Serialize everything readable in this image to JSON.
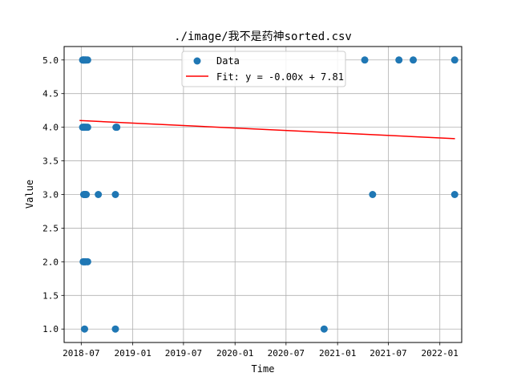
{
  "chart_data": {
    "type": "scatter",
    "title": "./image/我不是药神sorted.csv",
    "xlabel": "Time",
    "ylabel": "Value",
    "x_axis_type": "date",
    "xlim": [
      "2018-05-01",
      "2022-03-20"
    ],
    "ylim": [
      0.8,
      5.2
    ],
    "grid": true,
    "legend_position": "upper-center",
    "x_ticks": [
      "2018-07",
      "2019-01",
      "2019-07",
      "2020-01",
      "2020-07",
      "2021-01",
      "2021-07",
      "2022-01"
    ],
    "y_ticks": [
      "1.0",
      "1.5",
      "2.0",
      "2.5",
      "3.0",
      "3.5",
      "4.0",
      "4.5",
      "5.0"
    ],
    "series": [
      {
        "name": "Data",
        "kind": "scatter",
        "color": "#1f77b4",
        "points": [
          {
            "x": "2018-07-06",
            "y": 5
          },
          {
            "x": "2018-07-08",
            "y": 5
          },
          {
            "x": "2018-07-10",
            "y": 5
          },
          {
            "x": "2018-07-13",
            "y": 5
          },
          {
            "x": "2018-07-16",
            "y": 5
          },
          {
            "x": "2018-07-19",
            "y": 5
          },
          {
            "x": "2018-07-24",
            "y": 5
          },
          {
            "x": "2018-07-06",
            "y": 4
          },
          {
            "x": "2018-07-09",
            "y": 4
          },
          {
            "x": "2018-07-12",
            "y": 4
          },
          {
            "x": "2018-07-15",
            "y": 4
          },
          {
            "x": "2018-07-19",
            "y": 4
          },
          {
            "x": "2018-07-24",
            "y": 4
          },
          {
            "x": "2018-11-02",
            "y": 4
          },
          {
            "x": "2018-11-05",
            "y": 4
          },
          {
            "x": "2018-07-10",
            "y": 3
          },
          {
            "x": "2018-07-13",
            "y": 3
          },
          {
            "x": "2018-07-16",
            "y": 3
          },
          {
            "x": "2018-07-19",
            "y": 3
          },
          {
            "x": "2018-08-31",
            "y": 3
          },
          {
            "x": "2018-10-31",
            "y": 3
          },
          {
            "x": "2018-07-08",
            "y": 2
          },
          {
            "x": "2018-07-11",
            "y": 2
          },
          {
            "x": "2018-07-14",
            "y": 2
          },
          {
            "x": "2018-07-17",
            "y": 2
          },
          {
            "x": "2018-07-24",
            "y": 2
          },
          {
            "x": "2018-07-13",
            "y": 1
          },
          {
            "x": "2018-10-31",
            "y": 1
          },
          {
            "x": "2020-11-14",
            "y": 1
          },
          {
            "x": "2021-04-08",
            "y": 5
          },
          {
            "x": "2021-05-06",
            "y": 3
          },
          {
            "x": "2021-08-08",
            "y": 5
          },
          {
            "x": "2021-09-28",
            "y": 5
          },
          {
            "x": "2022-02-23",
            "y": 5
          },
          {
            "x": "2022-02-23",
            "y": 3
          }
        ]
      },
      {
        "name": "Fit: y = -0.00x + 7.81",
        "kind": "line",
        "color": "#ff0000",
        "points": [
          {
            "x": "2018-06-25",
            "y": 4.1
          },
          {
            "x": "2022-02-24",
            "y": 3.83
          }
        ]
      }
    ]
  }
}
